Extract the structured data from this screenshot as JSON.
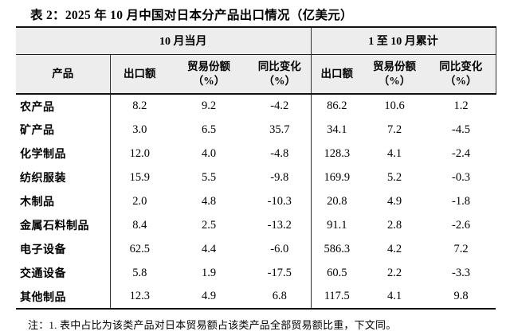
{
  "page": {
    "title": "表 2：2025 年 10 月中国对日本分产品出口情况（亿美元）"
  },
  "table": {
    "group_headers": {
      "current_month": "10 月当月",
      "cumulative": "1 至 10 月累计"
    },
    "columns": [
      {
        "id": "product",
        "line1": "产品",
        "line2": ""
      },
      {
        "id": "m_export",
        "line1": "出口额",
        "line2": ""
      },
      {
        "id": "m_share",
        "line1": "贸易份额",
        "line2": "（%）"
      },
      {
        "id": "m_yoy",
        "line1": "同比变化",
        "line2": "（%）"
      },
      {
        "id": "c_export",
        "line1": "出口额",
        "line2": ""
      },
      {
        "id": "c_share",
        "line1": "贸易份额",
        "line2": "（%）"
      },
      {
        "id": "c_yoy",
        "line1": "同比变化",
        "line2": "（%）"
      }
    ],
    "rows": [
      {
        "product": "农产品",
        "m_export": "8.2",
        "m_share": "9.2",
        "m_yoy": "-4.2",
        "c_export": "86.2",
        "c_share": "10.6",
        "c_yoy": "1.2"
      },
      {
        "product": "矿产品",
        "m_export": "3.0",
        "m_share": "6.5",
        "m_yoy": "35.7",
        "c_export": "34.1",
        "c_share": "7.2",
        "c_yoy": "-4.5"
      },
      {
        "product": "化学制品",
        "m_export": "12.0",
        "m_share": "4.0",
        "m_yoy": "-4.8",
        "c_export": "128.3",
        "c_share": "4.1",
        "c_yoy": "-2.4"
      },
      {
        "product": "纺织服装",
        "m_export": "15.9",
        "m_share": "5.5",
        "m_yoy": "-9.8",
        "c_export": "169.9",
        "c_share": "5.2",
        "c_yoy": "-0.3"
      },
      {
        "product": "木制品",
        "m_export": "2.0",
        "m_share": "4.8",
        "m_yoy": "-10.3",
        "c_export": "20.8",
        "c_share": "4.9",
        "c_yoy": "-1.8"
      },
      {
        "product": "金属石料制品",
        "m_export": "8.4",
        "m_share": "2.5",
        "m_yoy": "-13.2",
        "c_export": "91.1",
        "c_share": "2.8",
        "c_yoy": "-2.6"
      },
      {
        "product": "电子设备",
        "m_export": "62.5",
        "m_share": "4.4",
        "m_yoy": "-6.0",
        "c_export": "586.3",
        "c_share": "4.2",
        "c_yoy": "7.2"
      },
      {
        "product": "交通设备",
        "m_export": "5.8",
        "m_share": "1.9",
        "m_yoy": "-17.5",
        "c_export": "60.5",
        "c_share": "2.2",
        "c_yoy": "-3.3"
      },
      {
        "product": "其他制品",
        "m_export": "12.3",
        "m_share": "4.9",
        "m_yoy": "6.8",
        "c_export": "117.5",
        "c_share": "4.1",
        "c_yoy": "9.8"
      }
    ],
    "note": "注：1. 表中占比为该类产品对日本贸易额占该类产品全部贸易额比重，下文同。"
  },
  "colors": {
    "header_bg": "#ededed",
    "border": "#111111",
    "text": "#000000"
  }
}
